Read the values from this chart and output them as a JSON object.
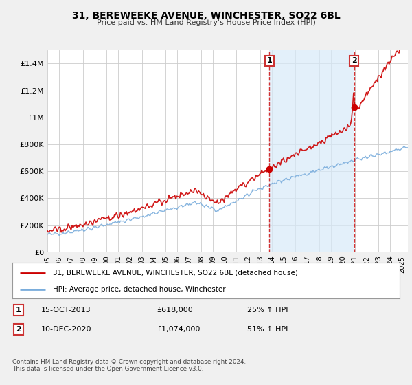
{
  "title": "31, BEREWEEKE AVENUE, WINCHESTER, SO22 6BL",
  "subtitle": "Price paid vs. HM Land Registry's House Price Index (HPI)",
  "ylabel_ticks": [
    "£0",
    "£200K",
    "£400K",
    "£600K",
    "£800K",
    "£1M",
    "£1.2M",
    "£1.4M"
  ],
  "ytick_values": [
    0,
    200000,
    400000,
    600000,
    800000,
    1000000,
    1200000,
    1400000
  ],
  "ylim": [
    0,
    1500000
  ],
  "xlim_start": 1995.0,
  "xlim_end": 2025.5,
  "sale1_date": 2013.79,
  "sale1_price": 618000,
  "sale2_date": 2020.94,
  "sale2_price": 1074000,
  "hpi_line_color": "#7aaddc",
  "price_line_color": "#cc0000",
  "vline_color": "#cc0000",
  "shade_color": "#d8eaf8",
  "background_color": "#f0f0f0",
  "plot_bg_color": "#ffffff",
  "grid_color": "#cccccc",
  "legend_line1": "31, BEREWEEKE AVENUE, WINCHESTER, SO22 6BL (detached house)",
  "legend_line2": "HPI: Average price, detached house, Winchester",
  "footer": "Contains HM Land Registry data © Crown copyright and database right 2024.\nThis data is licensed under the Open Government Licence v3.0.",
  "xtick_years": [
    1995,
    1996,
    1997,
    1998,
    1999,
    2000,
    2001,
    2002,
    2003,
    2004,
    2005,
    2006,
    2007,
    2008,
    2009,
    2010,
    2011,
    2012,
    2013,
    2014,
    2015,
    2016,
    2017,
    2018,
    2019,
    2020,
    2021,
    2022,
    2023,
    2024,
    2025
  ]
}
